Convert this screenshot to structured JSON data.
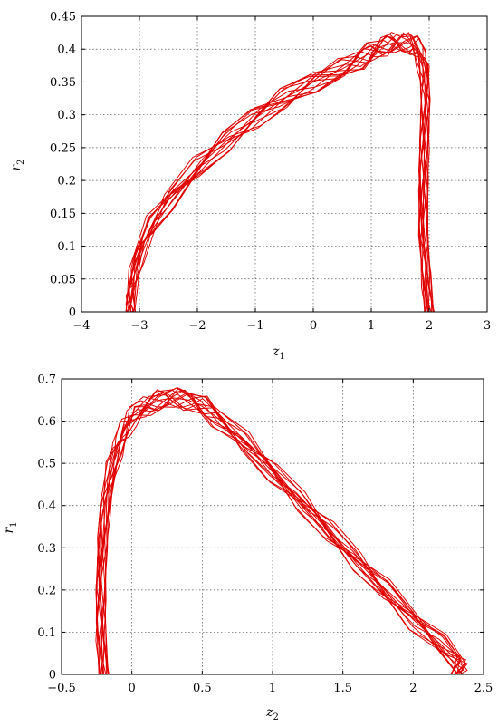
{
  "chart_data": [
    {
      "type": "line",
      "xlabel": "z",
      "xlabel_sub": "1",
      "ylabel": "r",
      "ylabel_sub": "2",
      "xlim": [
        -4,
        3
      ],
      "ylim": [
        0,
        0.45
      ],
      "xticks": [
        "−4",
        "−3",
        "−2",
        "−1",
        "0",
        "1",
        "2",
        "3"
      ],
      "yticks": [
        "0",
        "0.05",
        "0.1",
        "0.15",
        "0.2",
        "0.25",
        "0.3",
        "0.35",
        "0.4",
        "0.45"
      ],
      "grid": true,
      "color": "#e00000",
      "series": [
        {
          "x": [
            2.0,
            1.95,
            1.9,
            1.9,
            1.92,
            1.93,
            1.92,
            1.85,
            1.75,
            1.6,
            1.4,
            1.2,
            1.0,
            0.8,
            0.5,
            0.0,
            -0.5,
            -1.0,
            -1.5,
            -2.0,
            -2.5,
            -2.8,
            -3.0,
            -3.1,
            -3.15,
            -3.15,
            -3.1,
            -2.0,
            0.0,
            1.9,
            2.0
          ],
          "y": [
            0.0,
            0.05,
            0.12,
            0.2,
            0.26,
            0.32,
            0.36,
            0.39,
            0.405,
            0.41,
            0.41,
            0.405,
            0.395,
            0.385,
            0.37,
            0.35,
            0.325,
            0.295,
            0.26,
            0.22,
            0.17,
            0.13,
            0.09,
            0.05,
            0.02,
            0.0,
            0.0,
            0.0,
            0.0,
            0.0,
            0.0
          ]
        }
      ]
    },
    {
      "type": "line",
      "xlabel": "z",
      "xlabel_sub": "2",
      "ylabel": "r",
      "ylabel_sub": "1",
      "xlim": [
        -0.5,
        2.5
      ],
      "ylim": [
        0,
        0.7
      ],
      "xticks": [
        "−0.5",
        "0",
        "0.5",
        "1",
        "1.5",
        "2",
        "2.5"
      ],
      "yticks": [
        "0",
        "0.1",
        "0.2",
        "0.3",
        "0.4",
        "0.5",
        "0.6",
        "0.7"
      ],
      "grid": true,
      "color": "#e00000",
      "series": [
        {
          "x": [
            -0.2,
            -0.22,
            -0.22,
            -0.21,
            -0.19,
            -0.15,
            -0.1,
            -0.05,
            0.0,
            0.1,
            0.2,
            0.3,
            0.4,
            0.5,
            0.6,
            0.8,
            1.0,
            1.2,
            1.4,
            1.6,
            1.8,
            2.0,
            2.2,
            2.35,
            2.3,
            1.0,
            0.0,
            -0.2
          ],
          "y": [
            0.0,
            0.1,
            0.2,
            0.3,
            0.4,
            0.48,
            0.54,
            0.58,
            0.61,
            0.635,
            0.65,
            0.655,
            0.65,
            0.635,
            0.61,
            0.55,
            0.48,
            0.41,
            0.34,
            0.27,
            0.2,
            0.13,
            0.07,
            0.02,
            0.0,
            0.0,
            0.0,
            0.0
          ]
        }
      ]
    }
  ]
}
